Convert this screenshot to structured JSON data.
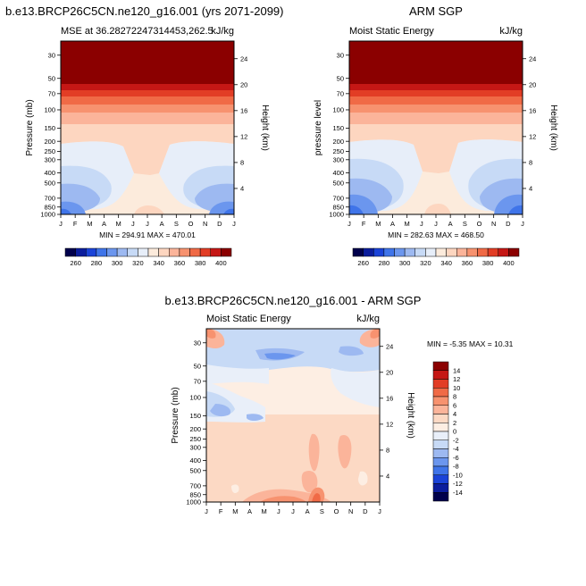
{
  "colors": {
    "absolute": [
      "#00004c",
      "#0b1d9d",
      "#1a43d8",
      "#3f74e9",
      "#6b96ee",
      "#9db9f1",
      "#c7daf6",
      "#e7eef9",
      "#fcebdc",
      "#fdd6c0",
      "#fbb49a",
      "#f7926f",
      "#f06a46",
      "#e23d25",
      "#c51715",
      "#8b0000"
    ],
    "difference": [
      "#00004c",
      "#0b1d9d",
      "#1a43d8",
      "#3f74e9",
      "#6b96ee",
      "#9db9f1",
      "#c7daf6",
      "#e9eff9",
      "#fdeee3",
      "#fcd9c4",
      "#fbb49a",
      "#f7926f",
      "#f06a46",
      "#e23d25",
      "#c51715",
      "#8b0000"
    ]
  },
  "chart_data": [
    {
      "id": "model",
      "type": "heatmap",
      "title": "b.e13.BRCP26C5CN.ne120_g16.001 (yrs 2071-2099)",
      "subtitle_left": "MSE at 36.28272247314453,262.5",
      "subtitle_right": "kJ/kg",
      "xlabel": "",
      "ylabel": "Pressure (mb)",
      "ylabel_right": "Height (km)",
      "x_ticks": [
        "J",
        "F",
        "M",
        "A",
        "M",
        "J",
        "J",
        "A",
        "S",
        "O",
        "N",
        "D",
        "J"
      ],
      "y_ticks": [
        30,
        50,
        70,
        100,
        150,
        200,
        250,
        300,
        400,
        500,
        700,
        850,
        1000
      ],
      "right_ticks": [
        24,
        20,
        16,
        12,
        8,
        4
      ],
      "ylim": [
        1000,
        22
      ],
      "stats": "MIN = 294.91 MAX = 470.01",
      "colorbar_labels": [
        260,
        280,
        300,
        320,
        340,
        360,
        380,
        400
      ],
      "colorbar_levels": [
        255,
        260,
        265,
        270,
        275,
        280,
        285,
        290,
        300,
        305,
        310,
        320,
        330,
        340,
        350,
        360,
        365,
        370,
        380,
        390,
        400
      ]
    },
    {
      "id": "obs",
      "type": "heatmap",
      "title": "ARM SGP",
      "subtitle_left": "Moist Static Energy",
      "subtitle_right": "kJ/kg",
      "xlabel": "",
      "ylabel": "pressure level",
      "ylabel_right": "Height (km)",
      "x_ticks": [
        "J",
        "F",
        "M",
        "A",
        "M",
        "J",
        "J",
        "A",
        "S",
        "O",
        "N",
        "D",
        "J"
      ],
      "y_ticks": [
        30,
        50,
        70,
        100,
        150,
        200,
        250,
        300,
        400,
        500,
        700,
        850,
        1000
      ],
      "right_ticks": [
        24,
        20,
        16,
        12,
        8,
        4
      ],
      "ylim": [
        1000,
        22
      ],
      "stats": "MIN = 282.63 MAX = 468.50",
      "colorbar_labels": [
        260,
        280,
        300,
        320,
        340,
        360,
        380,
        400
      ]
    },
    {
      "id": "diff",
      "type": "heatmap",
      "title": "b.e13.BRCP26C5CN.ne120_g16.001 - ARM SGP",
      "subtitle_left": "Moist Static Energy",
      "subtitle_right": "kJ/kg",
      "xlabel": "",
      "ylabel": "Pressure (mb)",
      "ylabel_right": "Height (km)",
      "x_ticks": [
        "J",
        "F",
        "M",
        "A",
        "M",
        "J",
        "J",
        "A",
        "S",
        "O",
        "N",
        "D",
        "J"
      ],
      "y_ticks": [
        30,
        50,
        70,
        100,
        150,
        200,
        250,
        300,
        400,
        500,
        700,
        850,
        1000
      ],
      "right_ticks": [
        24,
        20,
        16,
        12,
        8,
        4
      ],
      "ylim": [
        1000,
        22
      ],
      "stats": "MIN =  -5.35 MAX =  10.31",
      "colorbar_labels": [
        14,
        12,
        10,
        8,
        6,
        4,
        2,
        0,
        -2,
        -4,
        -6,
        -8,
        -10,
        -12,
        -14
      ],
      "colorbar_levels": [
        -14,
        -12,
        -10,
        -8,
        -6,
        -4,
        -2,
        0,
        2,
        4,
        6,
        8,
        10,
        12,
        14
      ]
    }
  ]
}
